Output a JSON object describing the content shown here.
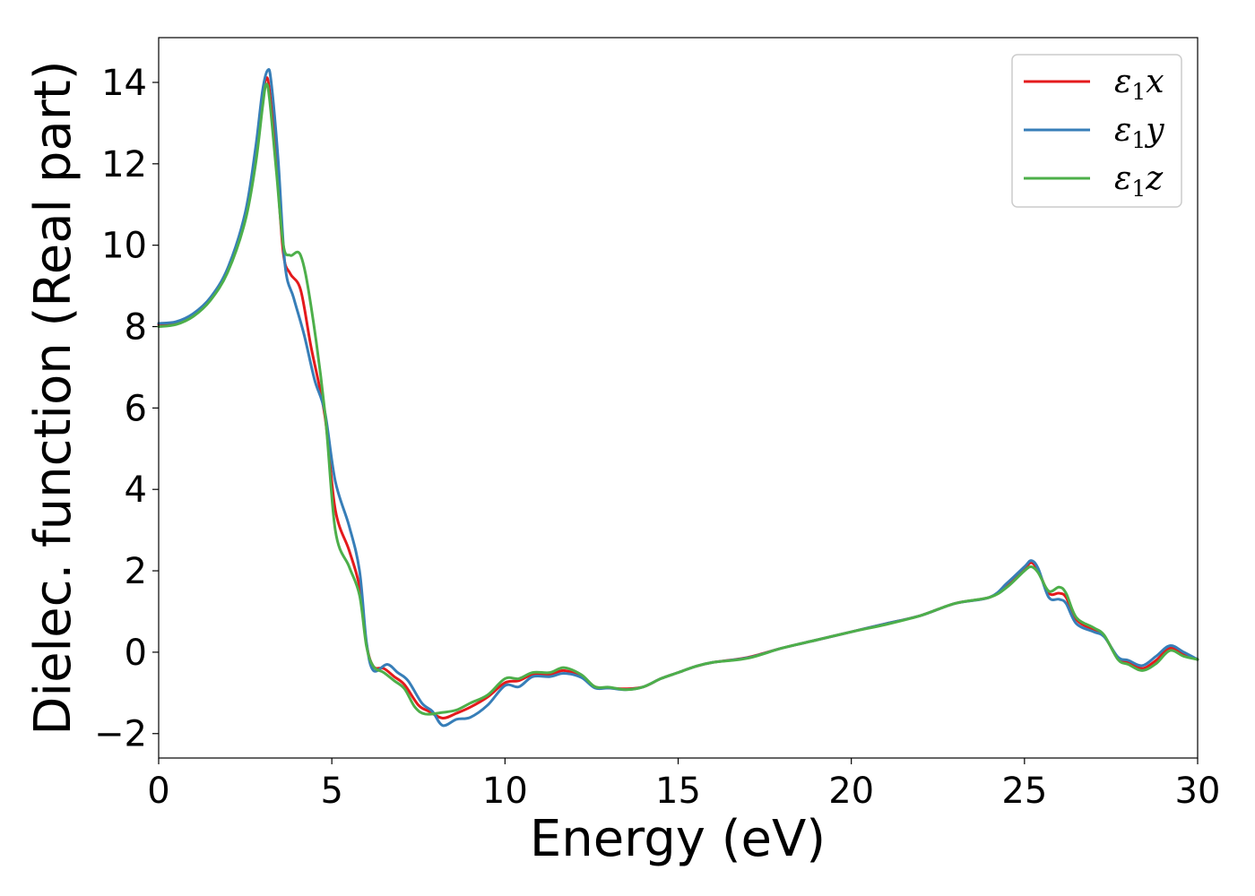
{
  "chart_data": {
    "type": "line",
    "title": "",
    "xlabel": "Energy (eV)",
    "ylabel": "Dielec. function (Real part)",
    "xlim": [
      0,
      30
    ],
    "ylim": [
      -2.6,
      15.1
    ],
    "xticks": [
      0,
      5,
      10,
      15,
      20,
      25,
      30
    ],
    "xtick_labels": [
      "0",
      "5",
      "10",
      "15",
      "20",
      "25",
      "30"
    ],
    "yticks": [
      -2,
      0,
      2,
      4,
      6,
      8,
      10,
      12,
      14
    ],
    "ytick_labels": [
      "−2",
      "0",
      "2",
      "4",
      "6",
      "8",
      "10",
      "12",
      "14"
    ],
    "grid": false,
    "legend_position": "top-right",
    "series": [
      {
        "name_base": "ε",
        "name_sub": "1",
        "name_var": "x",
        "color": "#e41a1c",
        "points": [
          [
            0,
            8.05
          ],
          [
            0.5,
            8.1
          ],
          [
            1,
            8.3
          ],
          [
            1.5,
            8.7
          ],
          [
            2,
            9.4
          ],
          [
            2.5,
            10.7
          ],
          [
            2.8,
            12.2
          ],
          [
            3,
            13.6
          ],
          [
            3.1,
            14.1
          ],
          [
            3.2,
            13.8
          ],
          [
            3.4,
            12.0
          ],
          [
            3.6,
            9.8
          ],
          [
            3.8,
            9.3
          ],
          [
            4.1,
            8.9
          ],
          [
            4.4,
            7.5
          ],
          [
            4.8,
            5.8
          ],
          [
            5.1,
            3.5
          ],
          [
            5.5,
            2.5
          ],
          [
            5.8,
            1.6
          ],
          [
            6.0,
            0.2
          ],
          [
            6.2,
            -0.35
          ],
          [
            6.5,
            -0.4
          ],
          [
            6.8,
            -0.6
          ],
          [
            7.1,
            -0.8
          ],
          [
            7.5,
            -1.3
          ],
          [
            7.8,
            -1.45
          ],
          [
            8.2,
            -1.62
          ],
          [
            8.6,
            -1.5
          ],
          [
            9,
            -1.35
          ],
          [
            9.5,
            -1.1
          ],
          [
            10,
            -0.75
          ],
          [
            10.4,
            -0.7
          ],
          [
            10.8,
            -0.55
          ],
          [
            11.3,
            -0.55
          ],
          [
            11.7,
            -0.45
          ],
          [
            12.2,
            -0.6
          ],
          [
            12.6,
            -0.85
          ],
          [
            13.0,
            -0.88
          ],
          [
            13.5,
            -0.9
          ],
          [
            14,
            -0.85
          ],
          [
            14.5,
            -0.65
          ],
          [
            15,
            -0.5
          ],
          [
            15.5,
            -0.35
          ],
          [
            16,
            -0.25
          ],
          [
            17,
            -0.13
          ],
          [
            18,
            0.1
          ],
          [
            19,
            0.3
          ],
          [
            20,
            0.5
          ],
          [
            21,
            0.7
          ],
          [
            22,
            0.9
          ],
          [
            23,
            1.2
          ],
          [
            24,
            1.35
          ],
          [
            24.5,
            1.65
          ],
          [
            25,
            2.05
          ],
          [
            25.2,
            2.2
          ],
          [
            25.4,
            2.0
          ],
          [
            25.7,
            1.45
          ],
          [
            26.0,
            1.45
          ],
          [
            26.2,
            1.35
          ],
          [
            26.5,
            0.8
          ],
          [
            27.0,
            0.55
          ],
          [
            27.3,
            0.4
          ],
          [
            27.7,
            -0.15
          ],
          [
            28.0,
            -0.25
          ],
          [
            28.4,
            -0.4
          ],
          [
            28.8,
            -0.2
          ],
          [
            29.2,
            0.1
          ],
          [
            29.6,
            -0.05
          ],
          [
            30,
            -0.18
          ]
        ]
      },
      {
        "name_base": "ε",
        "name_sub": "1",
        "name_var": "y",
        "color": "#377eb8",
        "points": [
          [
            0,
            8.08
          ],
          [
            0.5,
            8.12
          ],
          [
            1,
            8.32
          ],
          [
            1.5,
            8.72
          ],
          [
            2,
            9.45
          ],
          [
            2.5,
            10.8
          ],
          [
            2.8,
            12.4
          ],
          [
            3,
            13.8
          ],
          [
            3.15,
            14.3
          ],
          [
            3.25,
            14.0
          ],
          [
            3.45,
            12.1
          ],
          [
            3.65,
            9.5
          ],
          [
            3.9,
            8.7
          ],
          [
            4.2,
            7.8
          ],
          [
            4.5,
            6.7
          ],
          [
            4.8,
            5.9
          ],
          [
            5.1,
            4.2
          ],
          [
            5.5,
            3.1
          ],
          [
            5.8,
            2.0
          ],
          [
            6.0,
            0.25
          ],
          [
            6.2,
            -0.45
          ],
          [
            6.6,
            -0.3
          ],
          [
            6.9,
            -0.5
          ],
          [
            7.2,
            -0.7
          ],
          [
            7.6,
            -1.25
          ],
          [
            7.9,
            -1.45
          ],
          [
            8.2,
            -1.8
          ],
          [
            8.6,
            -1.65
          ],
          [
            9,
            -1.6
          ],
          [
            9.5,
            -1.3
          ],
          [
            10,
            -0.82
          ],
          [
            10.4,
            -0.85
          ],
          [
            10.8,
            -0.6
          ],
          [
            11.3,
            -0.6
          ],
          [
            11.7,
            -0.52
          ],
          [
            12.2,
            -0.62
          ],
          [
            12.6,
            -0.88
          ],
          [
            13.0,
            -0.88
          ],
          [
            13.5,
            -0.92
          ],
          [
            14,
            -0.85
          ],
          [
            14.5,
            -0.65
          ],
          [
            15,
            -0.5
          ],
          [
            15.5,
            -0.35
          ],
          [
            16,
            -0.25
          ],
          [
            17,
            -0.14
          ],
          [
            18,
            0.1
          ],
          [
            19,
            0.3
          ],
          [
            20,
            0.5
          ],
          [
            21,
            0.7
          ],
          [
            22,
            0.9
          ],
          [
            23,
            1.2
          ],
          [
            24,
            1.35
          ],
          [
            24.5,
            1.7
          ],
          [
            25,
            2.1
          ],
          [
            25.2,
            2.25
          ],
          [
            25.4,
            2.05
          ],
          [
            25.7,
            1.35
          ],
          [
            26.0,
            1.3
          ],
          [
            26.2,
            1.2
          ],
          [
            26.5,
            0.7
          ],
          [
            27.0,
            0.5
          ],
          [
            27.3,
            0.38
          ],
          [
            27.7,
            -0.12
          ],
          [
            28.0,
            -0.2
          ],
          [
            28.4,
            -0.33
          ],
          [
            28.8,
            -0.1
          ],
          [
            29.2,
            0.16
          ],
          [
            29.6,
            0.0
          ],
          [
            30,
            -0.18
          ]
        ]
      },
      {
        "name_base": "ε",
        "name_sub": "1",
        "name_var": "z",
        "color": "#4daf4a",
        "points": [
          [
            0,
            8.0
          ],
          [
            0.5,
            8.05
          ],
          [
            1,
            8.25
          ],
          [
            1.5,
            8.65
          ],
          [
            2,
            9.35
          ],
          [
            2.5,
            10.6
          ],
          [
            2.8,
            12.0
          ],
          [
            3,
            13.4
          ],
          [
            3.1,
            13.95
          ],
          [
            3.2,
            13.6
          ],
          [
            3.4,
            11.8
          ],
          [
            3.6,
            10.0
          ],
          [
            3.8,
            9.75
          ],
          [
            4.1,
            9.75
          ],
          [
            4.4,
            8.5
          ],
          [
            4.8,
            5.9
          ],
          [
            5.1,
            3.0
          ],
          [
            5.5,
            2.1
          ],
          [
            5.8,
            1.4
          ],
          [
            6.0,
            0.15
          ],
          [
            6.2,
            -0.35
          ],
          [
            6.5,
            -0.5
          ],
          [
            6.8,
            -0.7
          ],
          [
            7.1,
            -0.9
          ],
          [
            7.4,
            -1.35
          ],
          [
            7.7,
            -1.52
          ],
          [
            8.2,
            -1.48
          ],
          [
            8.6,
            -1.42
          ],
          [
            9,
            -1.25
          ],
          [
            9.5,
            -1.05
          ],
          [
            10,
            -0.65
          ],
          [
            10.4,
            -0.65
          ],
          [
            10.8,
            -0.5
          ],
          [
            11.3,
            -0.5
          ],
          [
            11.7,
            -0.38
          ],
          [
            12.2,
            -0.55
          ],
          [
            12.6,
            -0.85
          ],
          [
            13.0,
            -0.86
          ],
          [
            13.5,
            -0.92
          ],
          [
            14,
            -0.85
          ],
          [
            14.5,
            -0.65
          ],
          [
            15,
            -0.5
          ],
          [
            15.5,
            -0.35
          ],
          [
            16,
            -0.25
          ],
          [
            17,
            -0.15
          ],
          [
            18,
            0.1
          ],
          [
            19,
            0.3
          ],
          [
            20,
            0.5
          ],
          [
            21,
            0.68
          ],
          [
            22,
            0.9
          ],
          [
            23,
            1.2
          ],
          [
            24,
            1.35
          ],
          [
            24.5,
            1.6
          ],
          [
            25,
            2.0
          ],
          [
            25.2,
            2.1
          ],
          [
            25.4,
            1.95
          ],
          [
            25.7,
            1.5
          ],
          [
            26.0,
            1.6
          ],
          [
            26.2,
            1.45
          ],
          [
            26.5,
            0.85
          ],
          [
            27.0,
            0.6
          ],
          [
            27.3,
            0.42
          ],
          [
            27.7,
            -0.18
          ],
          [
            28.0,
            -0.3
          ],
          [
            28.4,
            -0.45
          ],
          [
            28.8,
            -0.28
          ],
          [
            29.2,
            0.04
          ],
          [
            29.6,
            -0.1
          ],
          [
            30,
            -0.18
          ]
        ]
      }
    ]
  }
}
